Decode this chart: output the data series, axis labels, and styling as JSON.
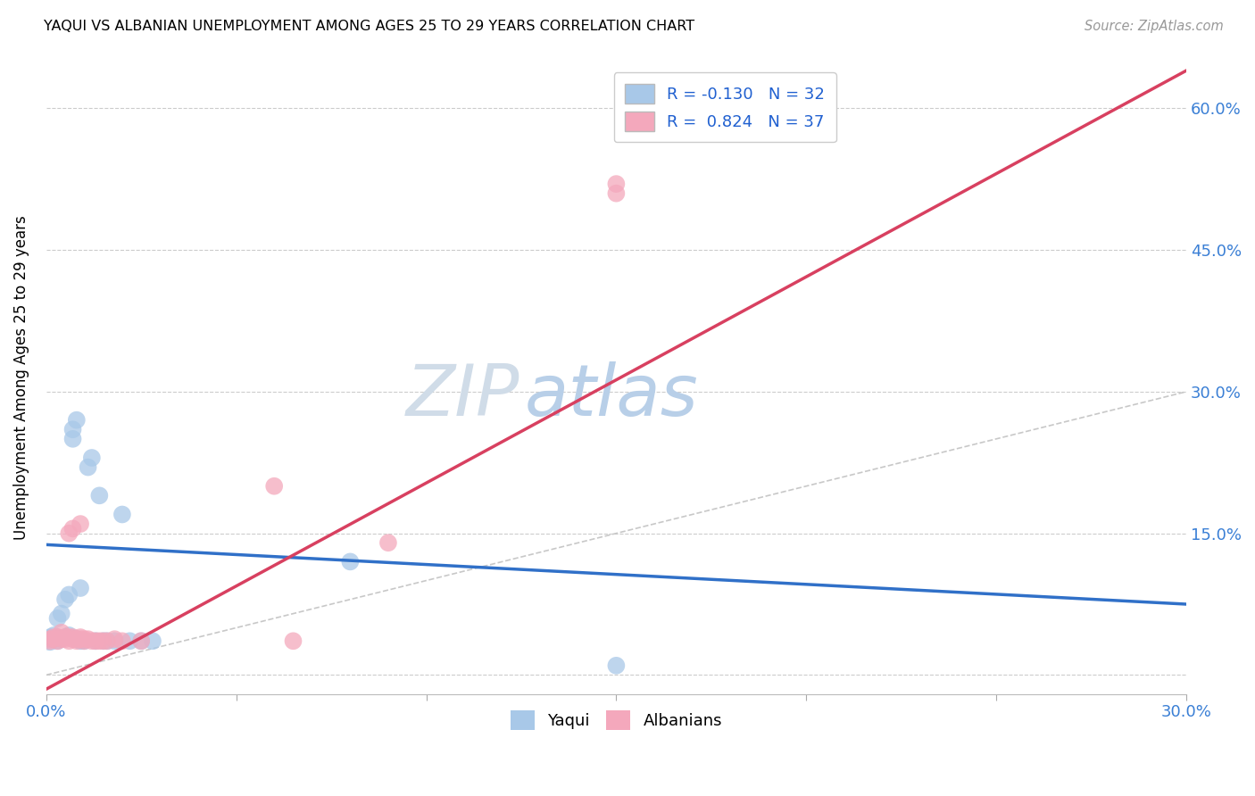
{
  "title": "YAQUI VS ALBANIAN UNEMPLOYMENT AMONG AGES 25 TO 29 YEARS CORRELATION CHART",
  "source": "Source: ZipAtlas.com",
  "ylabel": "Unemployment Among Ages 25 to 29 years",
  "xlim": [
    0.0,
    0.3
  ],
  "ylim": [
    -0.02,
    0.65
  ],
  "xticks": [
    0.0,
    0.05,
    0.1,
    0.15,
    0.2,
    0.25,
    0.3
  ],
  "yticks": [
    0.0,
    0.15,
    0.3,
    0.45,
    0.6
  ],
  "yaqui_R": -0.13,
  "yaqui_N": 32,
  "albanian_R": 0.824,
  "albanian_N": 37,
  "yaqui_color": "#a8c8e8",
  "albanian_color": "#f4a8bc",
  "yaqui_line_color": "#3070c8",
  "albanian_line_color": "#d84060",
  "ref_line_color": "#c8c8c8",
  "background_color": "#ffffff",
  "yaqui_x": [
    0.001,
    0.001,
    0.002,
    0.002,
    0.003,
    0.003,
    0.004,
    0.004,
    0.005,
    0.005,
    0.006,
    0.006,
    0.007,
    0.007,
    0.008,
    0.008,
    0.009,
    0.009,
    0.01,
    0.011,
    0.012,
    0.013,
    0.014,
    0.015,
    0.016,
    0.018,
    0.02,
    0.022,
    0.025,
    0.028,
    0.08,
    0.15
  ],
  "yaqui_y": [
    0.035,
    0.04,
    0.038,
    0.042,
    0.036,
    0.06,
    0.038,
    0.065,
    0.04,
    0.08,
    0.042,
    0.085,
    0.25,
    0.26,
    0.27,
    0.038,
    0.036,
    0.092,
    0.036,
    0.22,
    0.23,
    0.036,
    0.19,
    0.036,
    0.036,
    0.036,
    0.17,
    0.036,
    0.036,
    0.036,
    0.12,
    0.01
  ],
  "albanian_x": [
    0.001,
    0.001,
    0.002,
    0.002,
    0.003,
    0.003,
    0.004,
    0.004,
    0.005,
    0.005,
    0.006,
    0.006,
    0.006,
    0.007,
    0.007,
    0.007,
    0.008,
    0.008,
    0.009,
    0.009,
    0.009,
    0.01,
    0.01,
    0.011,
    0.012,
    0.013,
    0.014,
    0.015,
    0.016,
    0.018,
    0.02,
    0.025,
    0.06,
    0.065,
    0.09,
    0.15,
    0.15
  ],
  "albanian_y": [
    0.036,
    0.038,
    0.038,
    0.04,
    0.036,
    0.04,
    0.038,
    0.045,
    0.04,
    0.038,
    0.036,
    0.04,
    0.15,
    0.038,
    0.04,
    0.155,
    0.038,
    0.036,
    0.038,
    0.04,
    0.16,
    0.038,
    0.036,
    0.038,
    0.036,
    0.036,
    0.036,
    0.036,
    0.036,
    0.038,
    0.036,
    0.036,
    0.2,
    0.036,
    0.14,
    0.52,
    0.51
  ],
  "yaqui_line_x0": 0.0,
  "yaqui_line_y0": 0.138,
  "yaqui_line_x1": 0.3,
  "yaqui_line_y1": 0.075,
  "albanian_line_x0": 0.0,
  "albanian_line_y0": -0.015,
  "albanian_line_x1": 0.3,
  "albanian_line_y1": 0.64
}
